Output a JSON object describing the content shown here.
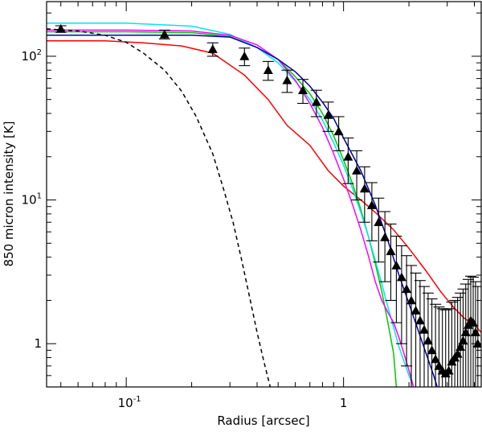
{
  "chart_data": {
    "type": "scatter",
    "title": "",
    "xlabel": "Radius [arcsec]",
    "ylabel": "850 micron intensity [K]",
    "x_scale": "log",
    "y_scale": "log",
    "xlim": [
      0.043,
      4.3
    ],
    "ylim": [
      0.5,
      240
    ],
    "grid": false,
    "x_ticks": [
      {
        "value": 0.1,
        "base": "10",
        "exp": "-1"
      },
      {
        "value": 1,
        "base": "1",
        "exp": ""
      }
    ],
    "y_ticks": [
      {
        "value": 1,
        "base": "1",
        "exp": ""
      },
      {
        "value": 10,
        "base": "10",
        "exp": "1"
      },
      {
        "value": 100,
        "base": "10",
        "exp": "2"
      }
    ],
    "observed": {
      "marker": "filled-triangle",
      "color": "#000000",
      "x": [
        0.05,
        0.15,
        0.25,
        0.35,
        0.45,
        0.55,
        0.65,
        0.75,
        0.85,
        0.95,
        1.05,
        1.15,
        1.25,
        1.35,
        1.45,
        1.55,
        1.65,
        1.75,
        1.85,
        1.95,
        2.05,
        2.15,
        2.25,
        2.35,
        2.45,
        2.55,
        2.65,
        2.75,
        2.85,
        2.95,
        3.05,
        3.15,
        3.25,
        3.35,
        3.45,
        3.55,
        3.65,
        3.75,
        3.85,
        3.95,
        4.05,
        4.15
      ],
      "y": [
        155,
        142,
        112,
        100,
        80,
        68,
        58,
        48,
        39,
        30,
        20,
        16,
        12,
        9.2,
        7.0,
        5.5,
        4.4,
        3.5,
        2.9,
        2.4,
        2.0,
        1.7,
        1.45,
        1.25,
        1.05,
        0.9,
        0.78,
        0.7,
        0.65,
        0.62,
        0.65,
        0.75,
        0.8,
        0.85,
        0.95,
        1.05,
        1.2,
        1.35,
        1.45,
        1.4,
        1.2,
        1.0
      ],
      "yerr": [
        8,
        10,
        12,
        14,
        12,
        12,
        11,
        10,
        9,
        8,
        7,
        6,
        5,
        4.0,
        3.3,
        2.8,
        2.4,
        2.1,
        1.9,
        1.7,
        1.5,
        1.4,
        1.3,
        1.25,
        1.2,
        1.15,
        1.1,
        1.1,
        1.1,
        1.1,
        1.1,
        1.2,
        1.2,
        1.25,
        1.3,
        1.35,
        1.4,
        1.45,
        1.5,
        1.5,
        1.5,
        1.5
      ]
    },
    "series": [
      {
        "color": "#ff0000",
        "dash": false,
        "points": [
          [
            0.043,
            128
          ],
          [
            0.08,
            128
          ],
          [
            0.12,
            124
          ],
          [
            0.18,
            118
          ],
          [
            0.25,
            105
          ],
          [
            0.35,
            74
          ],
          [
            0.45,
            50
          ],
          [
            0.55,
            33
          ],
          [
            0.7,
            24
          ],
          [
            0.85,
            16
          ],
          [
            1.0,
            12.5
          ],
          [
            1.2,
            10
          ],
          [
            1.4,
            8.2
          ],
          [
            1.7,
            6.2
          ],
          [
            2.0,
            4.6
          ],
          [
            2.4,
            3.2
          ],
          [
            2.8,
            2.3
          ],
          [
            3.2,
            1.8
          ],
          [
            3.6,
            1.5
          ],
          [
            4.0,
            1.35
          ],
          [
            4.3,
            1.2
          ]
        ]
      },
      {
        "color": "#00c800",
        "dash": false,
        "points": [
          [
            0.043,
            148
          ],
          [
            0.1,
            148
          ],
          [
            0.2,
            146
          ],
          [
            0.3,
            137
          ],
          [
            0.4,
            115
          ],
          [
            0.5,
            95
          ],
          [
            0.6,
            72
          ],
          [
            0.7,
            55
          ],
          [
            0.8,
            40
          ],
          [
            0.9,
            28
          ],
          [
            1.0,
            19
          ],
          [
            1.1,
            13
          ],
          [
            1.2,
            8.6
          ],
          [
            1.3,
            5.6
          ],
          [
            1.4,
            3.6
          ],
          [
            1.5,
            2.3
          ],
          [
            1.6,
            1.4
          ],
          [
            1.7,
            0.85
          ],
          [
            1.75,
            0.5
          ]
        ]
      },
      {
        "color": "#00e5ee",
        "dash": false,
        "points": [
          [
            0.043,
            170
          ],
          [
            0.1,
            170
          ],
          [
            0.2,
            162
          ],
          [
            0.3,
            142
          ],
          [
            0.4,
            115
          ],
          [
            0.5,
            90
          ],
          [
            0.6,
            67
          ],
          [
            0.7,
            50
          ],
          [
            0.8,
            36
          ],
          [
            0.9,
            25
          ],
          [
            1.0,
            17.5
          ],
          [
            1.1,
            12
          ],
          [
            1.2,
            8.2
          ],
          [
            1.3,
            5.6
          ],
          [
            1.4,
            3.8
          ],
          [
            1.5,
            2.6
          ],
          [
            1.6,
            1.8
          ],
          [
            1.7,
            1.3
          ],
          [
            1.8,
            0.95
          ],
          [
            1.9,
            0.75
          ],
          [
            2.0,
            0.6
          ],
          [
            2.1,
            0.5
          ]
        ]
      },
      {
        "color": "#ff00ff",
        "dash": false,
        "points": [
          [
            0.043,
            152
          ],
          [
            0.1,
            152
          ],
          [
            0.2,
            150
          ],
          [
            0.3,
            140
          ],
          [
            0.4,
            120
          ],
          [
            0.5,
            95
          ],
          [
            0.6,
            68
          ],
          [
            0.7,
            47
          ],
          [
            0.8,
            32
          ],
          [
            0.9,
            21
          ],
          [
            1.0,
            14
          ],
          [
            1.1,
            9.3
          ],
          [
            1.2,
            6.2
          ],
          [
            1.3,
            4.1
          ],
          [
            1.4,
            2.7
          ],
          [
            1.5,
            2.0
          ],
          [
            1.6,
            1.65
          ],
          [
            1.7,
            1.4
          ],
          [
            1.8,
            1.1
          ],
          [
            1.9,
            0.85
          ],
          [
            2.0,
            0.65
          ],
          [
            2.1,
            0.5
          ]
        ]
      },
      {
        "color": "#0000b4",
        "dash": false,
        "points": [
          [
            0.043,
            140
          ],
          [
            0.1,
            140
          ],
          [
            0.2,
            140
          ],
          [
            0.3,
            136
          ],
          [
            0.4,
            115
          ],
          [
            0.5,
            95
          ],
          [
            0.6,
            78
          ],
          [
            0.7,
            62
          ],
          [
            0.8,
            48
          ],
          [
            0.9,
            37
          ],
          [
            1.0,
            27
          ],
          [
            1.2,
            16
          ],
          [
            1.4,
            9.2
          ],
          [
            1.6,
            5.2
          ],
          [
            1.8,
            3.0
          ],
          [
            2.0,
            1.9
          ],
          [
            2.2,
            1.25
          ],
          [
            2.4,
            0.85
          ],
          [
            2.6,
            0.6
          ],
          [
            2.7,
            0.5
          ]
        ]
      },
      {
        "color": "#000000",
        "dash": true,
        "points": [
          [
            0.043,
            155
          ],
          [
            0.06,
            150
          ],
          [
            0.08,
            140
          ],
          [
            0.1,
            125
          ],
          [
            0.12,
            105
          ],
          [
            0.15,
            80
          ],
          [
            0.18,
            57
          ],
          [
            0.21,
            38
          ],
          [
            0.25,
            21
          ],
          [
            0.28,
            12
          ],
          [
            0.31,
            7.0
          ],
          [
            0.34,
            3.8
          ],
          [
            0.37,
            2.1
          ],
          [
            0.4,
            1.2
          ],
          [
            0.43,
            0.75
          ],
          [
            0.46,
            0.5
          ]
        ]
      }
    ]
  }
}
